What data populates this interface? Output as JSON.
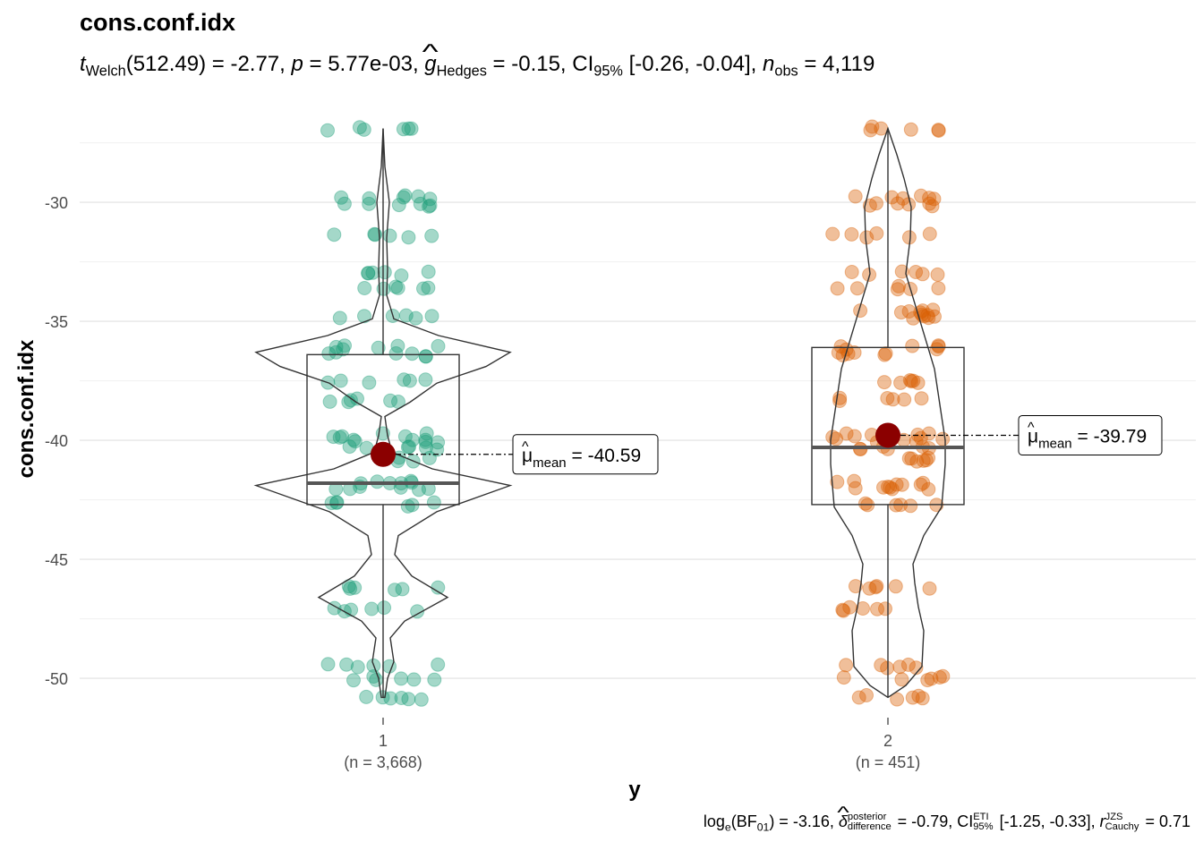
{
  "title": "cons.conf.idx",
  "subtitle": {
    "t_label": "t",
    "t_sub": "Welch",
    "t_stat": "(512.49) = -2.77, ",
    "p_label": "p",
    "p_value": " = 5.77e-03, ",
    "g_label": "g",
    "g_sub": "Hedges",
    "g_value": " = -0.15, CI",
    "ci_sub": "95%",
    "ci_value": " [-0.26, -0.04], ",
    "n_label": "n",
    "n_sub": "obs",
    "n_value": " = 4,119"
  },
  "caption": {
    "log_label": "log",
    "log_sub": "e",
    "bf_open": "(BF",
    "bf_sub": "01",
    "bf_value": ") = -3.16, ",
    "delta_label": "δ",
    "delta_sup": "posterior",
    "delta_sub": "difference",
    "delta_value": " = -0.79, CI",
    "ci_sup": "ETI",
    "ci_sub": "95%",
    "ci_value": " [-1.25, -0.33], ",
    "r_label": "r",
    "r_sup": "JZS",
    "r_sub": "Cauchy",
    "r_value": " = 0.71"
  },
  "chart_data": {
    "type": "violin-box-scatter",
    "xlabel": "y",
    "ylabel": "cons.conf.idx",
    "ylim": [
      -51.2,
      -26.2
    ],
    "y_ticks": [
      -50,
      -45,
      -40,
      -35,
      -30
    ],
    "y_tick_labels": [
      "-50",
      "-45",
      "-40",
      "-35",
      "-30"
    ],
    "grid": true,
    "groups": [
      {
        "category": "1",
        "n_label": "(n = 3,668)",
        "color": "#1b9e77",
        "box": {
          "q1": -42.7,
          "median": -41.8,
          "q3": -36.4,
          "whisker_low": -50.8,
          "whisker_high": -26.9
        },
        "violin_range": [
          -50.8,
          -26.9
        ],
        "mean": -40.59,
        "mean_label_name": "μ",
        "mean_label_sub": "mean",
        "mean_label_value": " = -40.59",
        "point_values": [
          -26.9,
          -29.8,
          -30.1,
          -31.4,
          -33.0,
          -33.6,
          -34.8,
          -36.1,
          -36.4,
          -37.5,
          -38.3,
          -39.8,
          -40.0,
          -40.3,
          -40.8,
          -41.8,
          -42.0,
          -42.7,
          -46.2,
          -47.1,
          -49.5,
          -50.0,
          -50.8
        ]
      },
      {
        "category": "2",
        "n_label": "(n = 451)",
        "color": "#d95f02",
        "box": {
          "q1": -42.7,
          "median": -40.3,
          "q3": -36.1,
          "whisker_low": -50.8,
          "whisker_high": -26.9
        },
        "violin_range": [
          -50.8,
          -26.9
        ],
        "mean": -39.79,
        "mean_label_name": "μ",
        "mean_label_sub": "mean",
        "mean_label_value": " = -39.79",
        "point_values": [
          -26.9,
          -29.8,
          -30.1,
          -31.4,
          -33.0,
          -33.6,
          -34.6,
          -34.8,
          -36.1,
          -36.4,
          -37.5,
          -38.3,
          -39.8,
          -40.0,
          -40.3,
          -40.8,
          -41.8,
          -42.0,
          -42.7,
          -46.2,
          -47.1,
          -49.5,
          -50.0,
          -50.8
        ]
      }
    ]
  }
}
